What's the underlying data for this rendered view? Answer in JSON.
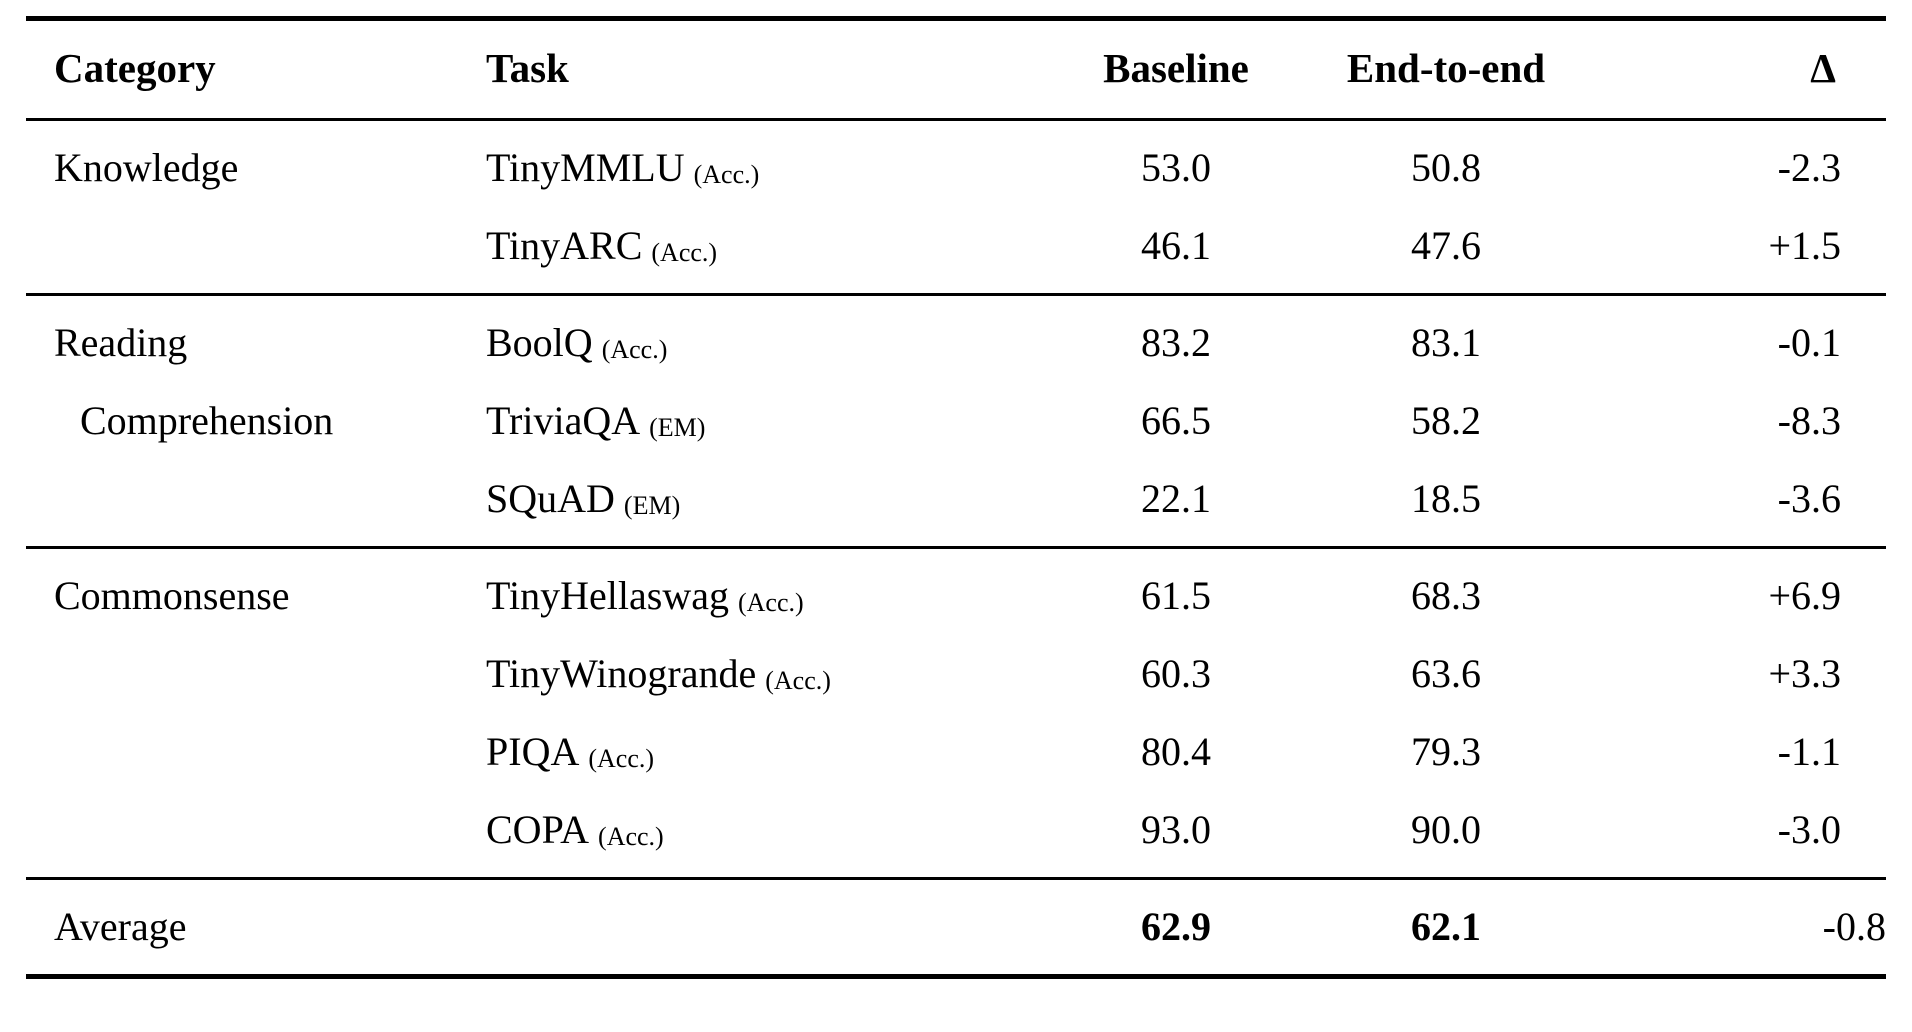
{
  "table": {
    "headers": {
      "category": "Category",
      "task": "Task",
      "baseline": "Baseline",
      "end_to_end": "End-to-end",
      "delta": "Δ"
    },
    "sections": [
      {
        "category_line1": "Knowledge",
        "rows": [
          {
            "task": "TinyMMLU",
            "metric": "(Acc.)",
            "baseline": "53.0",
            "end_to_end": "50.8",
            "delta": "-2.3"
          },
          {
            "task": "TinyARC",
            "metric": "(Acc.)",
            "baseline": "46.1",
            "end_to_end": "47.6",
            "delta": "+1.5"
          }
        ]
      },
      {
        "category_line1": "Reading",
        "category_line2": "Comprehension",
        "rows": [
          {
            "task": "BoolQ",
            "metric": "(Acc.)",
            "baseline": "83.2",
            "end_to_end": "83.1",
            "delta": "-0.1"
          },
          {
            "task": "TriviaQA",
            "metric": "(EM)",
            "baseline": "66.5",
            "end_to_end": "58.2",
            "delta": "-8.3"
          },
          {
            "task": "SQuAD",
            "metric": "(EM)",
            "baseline": "22.1",
            "end_to_end": "18.5",
            "delta": "-3.6"
          }
        ]
      },
      {
        "category_line1": "Commonsense",
        "rows": [
          {
            "task": "TinyHellaswag",
            "metric": "(Acc.)",
            "baseline": "61.5",
            "end_to_end": "68.3",
            "delta": "+6.9"
          },
          {
            "task": "TinyWinogrande",
            "metric": "(Acc.)",
            "baseline": "60.3",
            "end_to_end": "63.6",
            "delta": "+3.3"
          },
          {
            "task": "PIQA",
            "metric": "(Acc.)",
            "baseline": "80.4",
            "end_to_end": "79.3",
            "delta": "-1.1"
          },
          {
            "task": "COPA",
            "metric": "(Acc.)",
            "baseline": "93.0",
            "end_to_end": "90.0",
            "delta": "-3.0"
          }
        ]
      }
    ],
    "average": {
      "label": "Average",
      "baseline": "62.9",
      "end_to_end": "62.1",
      "delta": "-0.8"
    }
  }
}
